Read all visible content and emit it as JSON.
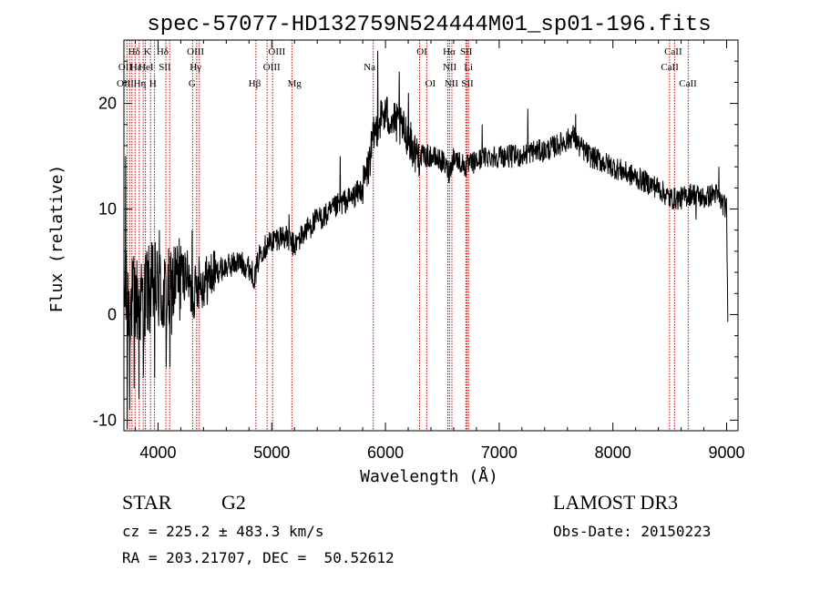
{
  "chart_data": {
    "type": "line",
    "title": "spec-57077-HD132759N524444M01_sp01-196.fits",
    "xlabel": "Wavelength (Å)",
    "ylabel": "Flux (relative)",
    "xlim": [
      3700,
      9100
    ],
    "ylim": [
      -11,
      26
    ],
    "xticks": [
      4000,
      5000,
      6000,
      7000,
      8000,
      9000
    ],
    "yticks": [
      -10,
      0,
      10,
      20
    ],
    "grid": false,
    "line_color": "#000000",
    "marker_color": "#cc0000",
    "anchors": [
      [
        3700,
        2
      ],
      [
        3750,
        1
      ],
      [
        3800,
        1.5
      ],
      [
        3850,
        1
      ],
      [
        3900,
        2
      ],
      [
        3950,
        2.5
      ],
      [
        4000,
        2.5
      ],
      [
        4050,
        1.5
      ],
      [
        4100,
        2
      ],
      [
        4150,
        3
      ],
      [
        4200,
        3.5
      ],
      [
        4250,
        4
      ],
      [
        4300,
        1.5
      ],
      [
        4350,
        3
      ],
      [
        4400,
        3
      ],
      [
        4500,
        4
      ],
      [
        4600,
        4.5
      ],
      [
        4700,
        5
      ],
      [
        4800,
        4.5
      ],
      [
        4850,
        3.5
      ],
      [
        4900,
        6
      ],
      [
        5000,
        7
      ],
      [
        5100,
        7.5
      ],
      [
        5200,
        6.5
      ],
      [
        5300,
        8
      ],
      [
        5400,
        9
      ],
      [
        5500,
        9.5
      ],
      [
        5600,
        10.5
      ],
      [
        5700,
        11
      ],
      [
        5800,
        12
      ],
      [
        5850,
        14
      ],
      [
        5900,
        17
      ],
      [
        5950,
        18.5
      ],
      [
        6000,
        19
      ],
      [
        6050,
        18.5
      ],
      [
        6100,
        18
      ],
      [
        6200,
        17
      ],
      [
        6250,
        15.5
      ],
      [
        6300,
        15
      ],
      [
        6400,
        15
      ],
      [
        6500,
        14.5
      ],
      [
        6560,
        13.5
      ],
      [
        6600,
        15
      ],
      [
        6700,
        14
      ],
      [
        6800,
        14.5
      ],
      [
        6900,
        15
      ],
      [
        7000,
        15
      ],
      [
        7100,
        15
      ],
      [
        7200,
        15
      ],
      [
        7300,
        15.5
      ],
      [
        7400,
        15.5
      ],
      [
        7500,
        16
      ],
      [
        7600,
        16.5
      ],
      [
        7650,
        17
      ],
      [
        7700,
        16
      ],
      [
        7800,
        15
      ],
      [
        7900,
        14.5
      ],
      [
        8000,
        14
      ],
      [
        8100,
        13.5
      ],
      [
        8200,
        13
      ],
      [
        8300,
        12.5
      ],
      [
        8400,
        12
      ],
      [
        8500,
        11
      ],
      [
        8600,
        11
      ],
      [
        8700,
        11.5
      ],
      [
        8800,
        11
      ],
      [
        8900,
        11.5
      ],
      [
        9000,
        10
      ],
      [
        9010,
        0
      ]
    ],
    "spikes": [
      [
        3715,
        15
      ],
      [
        3730,
        -11
      ],
      [
        3750,
        -9
      ],
      [
        3790,
        -7
      ],
      [
        3830,
        -8
      ],
      [
        3870,
        -6
      ],
      [
        3900,
        6
      ],
      [
        3970,
        -6
      ],
      [
        4010,
        8
      ],
      [
        4070,
        -5
      ],
      [
        4105,
        -5
      ],
      [
        4200,
        6.5
      ],
      [
        4300,
        8
      ],
      [
        4360,
        5.5
      ],
      [
        5150,
        9.5
      ],
      [
        5600,
        15
      ],
      [
        5930,
        25
      ],
      [
        6120,
        23
      ],
      [
        6200,
        21
      ],
      [
        6850,
        18
      ],
      [
        7250,
        19.5
      ],
      [
        7670,
        19
      ],
      [
        8730,
        9
      ],
      [
        8930,
        14
      ]
    ],
    "lines": [
      {
        "wl": 3727,
        "labels": [
          {
            "text": "OII",
            "row": 2
          },
          {
            "text": "OIII",
            "row": 3
          }
        ]
      },
      {
        "wl": 3750,
        "labels": []
      },
      {
        "wl": 3771,
        "labels": []
      },
      {
        "wl": 3798,
        "labels": []
      },
      {
        "wl": 3835,
        "labels": []
      },
      {
        "wl": 3869,
        "labels": []
      },
      {
        "wl": 3889,
        "labels": []
      },
      {
        "wl": 3934,
        "labels": []
      },
      {
        "wl": 3969,
        "labels": []
      },
      {
        "wl": 4069,
        "labels": []
      },
      {
        "wl": 4102,
        "labels": []
      },
      {
        "wl": 4304,
        "labels": []
      },
      {
        "wl": 4340,
        "labels": []
      },
      {
        "wl": 4363,
        "labels": []
      },
      {
        "wl": 4861,
        "labels": []
      },
      {
        "wl": 4959,
        "labels": []
      },
      {
        "wl": 5007,
        "labels": []
      },
      {
        "wl": 5177,
        "labels": []
      },
      {
        "wl": 5893,
        "labels": []
      },
      {
        "wl": 6300,
        "labels": []
      },
      {
        "wl": 6363,
        "labels": []
      },
      {
        "wl": 6548,
        "labels": []
      },
      {
        "wl": 6563,
        "labels": []
      },
      {
        "wl": 6584,
        "labels": []
      },
      {
        "wl": 6707,
        "labels": []
      },
      {
        "wl": 6717,
        "labels": []
      },
      {
        "wl": 6731,
        "labels": []
      },
      {
        "wl": 8498,
        "labels": []
      },
      {
        "wl": 8542,
        "labels": []
      },
      {
        "wl": 8662,
        "labels": []
      }
    ],
    "line_labels": [
      {
        "text": "Hδ",
        "wl": 3790,
        "row": 1
      },
      {
        "text": "K",
        "wl": 3905,
        "row": 1
      },
      {
        "text": "Hδ",
        "wl": 4040,
        "row": 1
      },
      {
        "text": "OIII",
        "wl": 4330,
        "row": 1
      },
      {
        "text": "OIII",
        "wl": 5045,
        "row": 1
      },
      {
        "text": "OI",
        "wl": 6320,
        "row": 1
      },
      {
        "text": "Hα",
        "wl": 6560,
        "row": 1
      },
      {
        "text": "SII",
        "wl": 6710,
        "row": 1
      },
      {
        "text": "CaII",
        "wl": 8530,
        "row": 1
      },
      {
        "text": "OII",
        "wl": 3712,
        "row": 2
      },
      {
        "text": "Hε",
        "wl": 3805,
        "row": 2
      },
      {
        "text": "HeI",
        "wl": 3895,
        "row": 2
      },
      {
        "text": "SII",
        "wl": 4060,
        "row": 2
      },
      {
        "text": "Hγ",
        "wl": 4330,
        "row": 2
      },
      {
        "text": "OIII",
        "wl": 5000,
        "row": 2
      },
      {
        "text": "Na",
        "wl": 5860,
        "row": 2
      },
      {
        "text": "NII",
        "wl": 6565,
        "row": 2
      },
      {
        "text": "Li",
        "wl": 6730,
        "row": 2
      },
      {
        "text": "CaII",
        "wl": 8500,
        "row": 2
      },
      {
        "text": "OIII",
        "wl": 3712,
        "row": 3
      },
      {
        "text": "Hη",
        "wl": 3840,
        "row": 3
      },
      {
        "text": "H",
        "wl": 3955,
        "row": 3
      },
      {
        "text": "G",
        "wl": 4300,
        "row": 3
      },
      {
        "text": "Hβ",
        "wl": 4850,
        "row": 3
      },
      {
        "text": "Mg",
        "wl": 5200,
        "row": 3
      },
      {
        "text": "OI",
        "wl": 6395,
        "row": 3
      },
      {
        "text": "NII",
        "wl": 6580,
        "row": 3
      },
      {
        "text": "SII",
        "wl": 6720,
        "row": 3
      },
      {
        "text": "CaII",
        "wl": 8660,
        "row": 3
      }
    ]
  },
  "info": {
    "object_class": "STAR",
    "subclass": "G2",
    "survey": "LAMOST DR3",
    "redshift": "cz = 225.2 ± 483.3 km/s",
    "obs_date": "Obs-Date: 20150223",
    "coords": "RA = 203.21707, DEC =  50.52612"
  }
}
